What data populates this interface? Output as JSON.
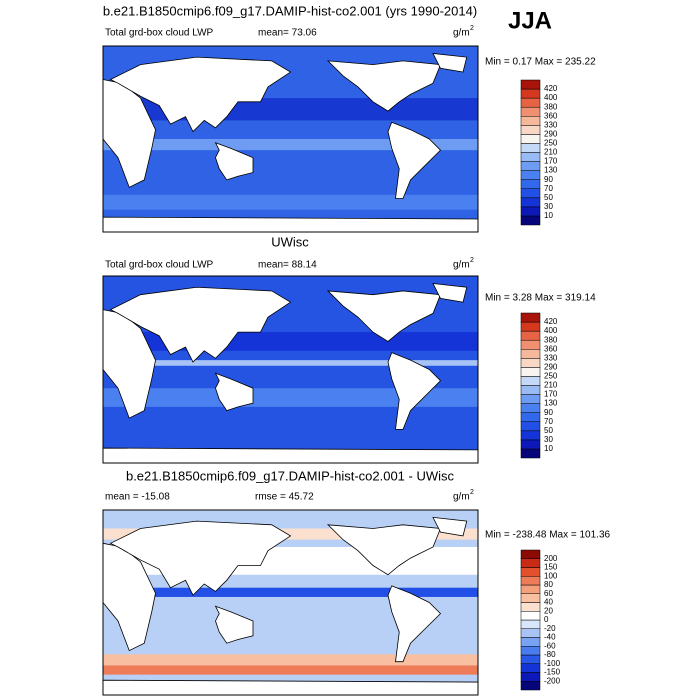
{
  "season": "JJA",
  "panels": [
    {
      "title": "b.e21.B1850cmip6.f09_g17.DAMIP-hist-co2.001 (yrs 1990-2014)",
      "left": "Total grd-box cloud LWP",
      "stat": "mean=  73.06",
      "units": "g/m",
      "units_power": "2",
      "minmax": "Min =   0.17 Max = 235.22",
      "colorbar": {
        "labels": [
          "10",
          "30",
          "50",
          "70",
          "90",
          "130",
          "170",
          "210",
          "250",
          "290",
          "330",
          "360",
          "380",
          "400",
          "420"
        ],
        "colors": [
          "#06067a",
          "#0c18b8",
          "#1434d8",
          "#2250e6",
          "#3268ec",
          "#4a80f0",
          "#6e9cf2",
          "#98baf5",
          "#c4d8f8",
          "#f8f4f0",
          "#f8d8c4",
          "#f6b89a",
          "#f09070",
          "#e66444",
          "#d4381e",
          "#a8140a"
        ]
      }
    },
    {
      "title": "UWisc",
      "left": "Total grd-box cloud LWP",
      "stat": "mean=  88.14",
      "units": "g/m",
      "units_power": "2",
      "minmax": "Min =   3.28 Max = 319.14",
      "colorbar": {
        "labels": [
          "10",
          "30",
          "50",
          "70",
          "90",
          "130",
          "170",
          "210",
          "250",
          "290",
          "330",
          "360",
          "380",
          "400",
          "420"
        ],
        "colors": [
          "#06067a",
          "#0c18b8",
          "#1434d8",
          "#2250e6",
          "#3268ec",
          "#4a80f0",
          "#6e9cf2",
          "#98baf5",
          "#c4d8f8",
          "#f8f4f0",
          "#f8d8c4",
          "#f6b89a",
          "#f09070",
          "#e66444",
          "#d4381e",
          "#a8140a"
        ]
      }
    },
    {
      "title": "b.e21.B1850cmip6.f09_g17.DAMIP-hist-co2.001 - UWisc",
      "left": "mean = -15.08",
      "stat": "rmse =  45.72",
      "units": "g/m",
      "units_power": "2",
      "minmax": "Min = -238.48 Max = 101.36",
      "colorbar": {
        "labels": [
          "-200",
          "-150",
          "-100",
          "-80",
          "-60",
          "-40",
          "-20",
          "0",
          "20",
          "40",
          "60",
          "80",
          "100",
          "150",
          "200"
        ],
        "colors": [
          "#06067a",
          "#0c18b8",
          "#1434d8",
          "#2a58e6",
          "#4a7cee",
          "#78a2f2",
          "#a8c4f6",
          "#d8e6fa",
          "#ffffff",
          "#fbe0d0",
          "#f8c0a0",
          "#f4a07c",
          "#ee7c58",
          "#e2502e",
          "#c82a14",
          "#8c0a04"
        ]
      }
    }
  ]
}
